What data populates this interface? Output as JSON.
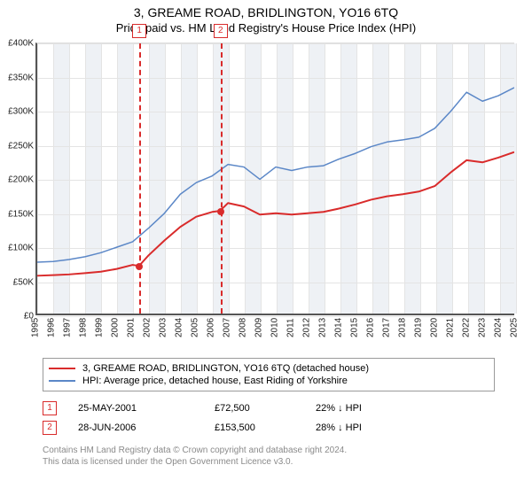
{
  "title_line1": "3, GREAME ROAD, BRIDLINGTON, YO16 6TQ",
  "title_line2": "Price paid vs. HM Land Registry's House Price Index (HPI)",
  "chart": {
    "type": "line",
    "xlim": [
      1995,
      2025
    ],
    "ylim": [
      0,
      400000
    ],
    "ytick_step": 50000,
    "ytick_labels": [
      "£0",
      "£50K",
      "£100K",
      "£150K",
      "£200K",
      "£250K",
      "£300K",
      "£350K",
      "£400K"
    ],
    "xtick_step": 1,
    "xtick_labels": [
      "1995",
      "1996",
      "1997",
      "1998",
      "1999",
      "2000",
      "2001",
      "2002",
      "2003",
      "2004",
      "2005",
      "2006",
      "2007",
      "2008",
      "2009",
      "2010",
      "2011",
      "2012",
      "2013",
      "2014",
      "2015",
      "2016",
      "2017",
      "2018",
      "2019",
      "2020",
      "2021",
      "2022",
      "2023",
      "2024",
      "2025"
    ],
    "band_color": "#eef1f5",
    "grid_color": "#e4e4e4",
    "axis_color": "#555555",
    "background": "#ffffff",
    "sale_markers": [
      {
        "num": "1",
        "year": 2001.4,
        "price": 72500,
        "dash_color": "#d92b2b"
      },
      {
        "num": "2",
        "year": 2006.49,
        "price": 153500,
        "dash_color": "#d92b2b"
      }
    ],
    "series_red": {
      "color": "#d92b2b",
      "width": 2,
      "x": [
        1995,
        1996,
        1997,
        1998,
        1999,
        2000,
        2001,
        2001.4,
        2002,
        2003,
        2004,
        2005,
        2006,
        2006.49,
        2007,
        2008,
        2009,
        2010,
        2011,
        2012,
        2013,
        2014,
        2015,
        2016,
        2017,
        2018,
        2019,
        2020,
        2021,
        2022,
        2023,
        2024,
        2025
      ],
      "y": [
        58000,
        59000,
        60000,
        62000,
        64000,
        68000,
        74000,
        72500,
        88000,
        110000,
        130000,
        145000,
        152000,
        153500,
        165000,
        160000,
        148000,
        150000,
        148000,
        150000,
        152000,
        157000,
        163000,
        170000,
        175000,
        178000,
        182000,
        190000,
        210000,
        228000,
        225000,
        232000,
        240000
      ]
    },
    "series_blue": {
      "color": "#5b87c7",
      "width": 1.5,
      "x": [
        1995,
        1996,
        1997,
        1998,
        1999,
        2000,
        2001,
        2002,
        2003,
        2004,
        2005,
        2006,
        2007,
        2008,
        2009,
        2010,
        2011,
        2012,
        2013,
        2014,
        2015,
        2016,
        2017,
        2018,
        2019,
        2020,
        2021,
        2022,
        2023,
        2024,
        2025
      ],
      "y": [
        78000,
        79000,
        82000,
        86000,
        92000,
        100000,
        108000,
        128000,
        150000,
        178000,
        195000,
        205000,
        222000,
        218000,
        200000,
        218000,
        213000,
        218000,
        220000,
        230000,
        238000,
        248000,
        255000,
        258000,
        262000,
        275000,
        300000,
        328000,
        315000,
        323000,
        335000
      ]
    }
  },
  "legend": {
    "red": "3, GREAME ROAD, BRIDLINGTON, YO16 6TQ (detached house)",
    "blue": "HPI: Average price, detached house, East Riding of Yorkshire"
  },
  "sales": [
    {
      "num": "1",
      "date": "25-MAY-2001",
      "price": "£72,500",
      "diff": "22% ↓ HPI"
    },
    {
      "num": "2",
      "date": "28-JUN-2006",
      "price": "£153,500",
      "diff": "28% ↓ HPI"
    }
  ],
  "footnote1": "Contains HM Land Registry data © Crown copyright and database right 2024.",
  "footnote2": "This data is licensed under the Open Government Licence v3.0."
}
